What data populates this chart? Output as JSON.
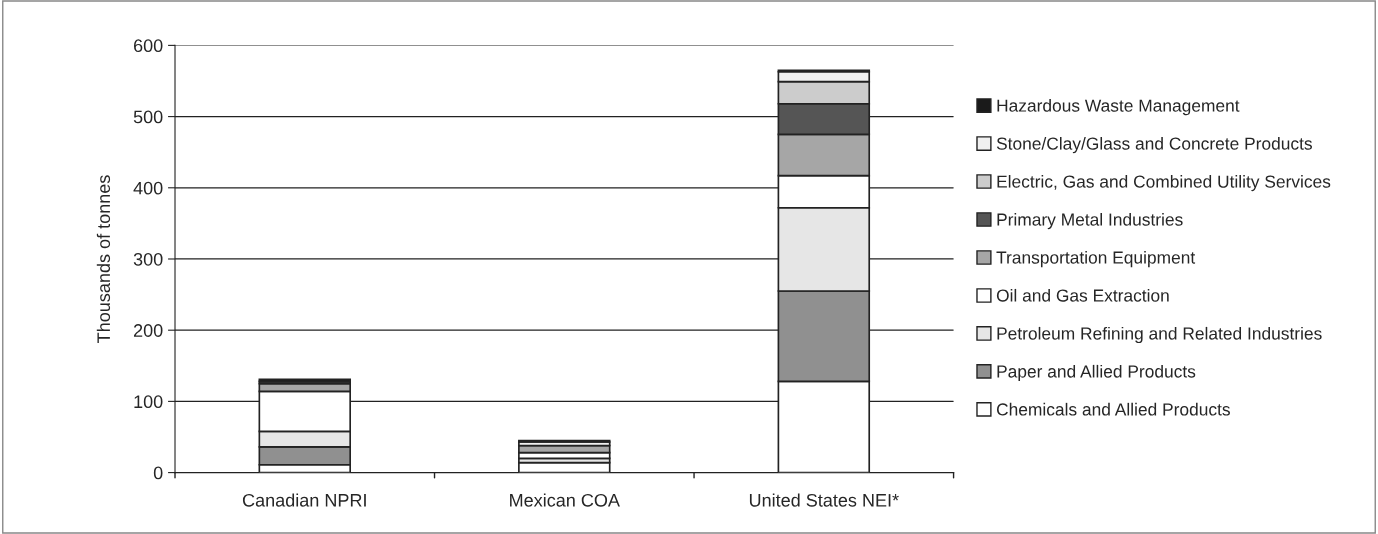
{
  "chart_data": {
    "type": "bar",
    "stacked": true,
    "ylabel": "Thousands of tonnes",
    "categories": [
      "Canadian NPRI",
      "Mexican COA",
      "United States NEI*"
    ],
    "series": [
      {
        "name": "Chemicals and Allied Products",
        "color": "#ffffff",
        "values": [
          11,
          14,
          128
        ]
      },
      {
        "name": "Paper and Allied Products",
        "color": "#909090",
        "values": [
          25,
          null,
          127
        ]
      },
      {
        "name": "Petroleum Refining and Related Industries",
        "color": "#e6e6e6",
        "values": [
          22,
          6,
          117
        ]
      },
      {
        "name": "Oil and Gas Extraction",
        "color": "#ffffff",
        "values": [
          56,
          8,
          45
        ]
      },
      {
        "name": "Transportation Equipment",
        "color": "#a6a6a6",
        "values": [
          11,
          10,
          58
        ]
      },
      {
        "name": "Primary Metal Industries",
        "color": "#555555",
        "values": [
          3,
          0,
          43
        ]
      },
      {
        "name": "Electric, Gas and Combined Utility Services",
        "color": "#cccccc",
        "values": [
          0,
          0,
          31
        ]
      },
      {
        "name": "Stone/Clay/Glass and Concrete Products",
        "color": "#f0f0f0",
        "values": [
          0,
          5,
          14
        ]
      },
      {
        "name": "Hazardous Waste Management",
        "color": "#1a1a1a",
        "values": [
          3,
          2,
          2
        ]
      }
    ],
    "ylim": [
      0,
      600
    ],
    "yticks": [
      0,
      100,
      200,
      300,
      400,
      500,
      600
    ],
    "grid": "y",
    "legend": "right"
  }
}
